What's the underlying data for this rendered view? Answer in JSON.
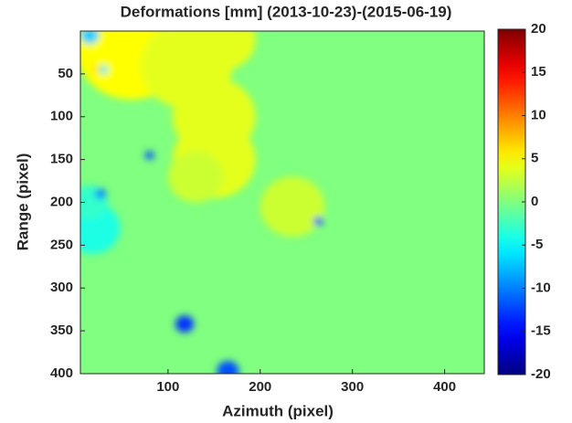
{
  "chart_data": {
    "type": "heatmap",
    "title": "Deformations [mm] (2013-10-23)-(2015-06-19)",
    "x_label": "Azimuth (pixel)",
    "y_label": "Range (pixel)",
    "xlim": [
      5,
      443
    ],
    "ylim": [
      0,
      400
    ],
    "xticks": [
      100,
      200,
      300,
      400
    ],
    "yticks": [
      50,
      100,
      150,
      200,
      250,
      300,
      350,
      400
    ],
    "clim": [
      -20,
      20
    ],
    "cticks": [
      20,
      15,
      10,
      5,
      0,
      -5,
      -10,
      -15,
      -20
    ],
    "colormap": "jet",
    "x": [
      60,
      120,
      160,
      150,
      150,
      130,
      235,
      18,
      15,
      80,
      27,
      263,
      118,
      165,
      30,
      22,
      15
    ],
    "y": [
      20,
      40,
      10,
      100,
      150,
      170,
      205,
      230,
      200,
      145,
      190,
      222,
      342,
      397,
      45,
      45,
      5
    ],
    "sizes": [
      60,
      50,
      35,
      45,
      45,
      30,
      35,
      30,
      20,
      5,
      6,
      5,
      10,
      12,
      5,
      5,
      10
    ],
    "values": [
      5,
      4,
      4,
      4,
      4,
      3,
      3,
      -4,
      -3,
      -12,
      -10,
      -14,
      -13,
      -12,
      -6,
      6,
      -7
    ]
  }
}
